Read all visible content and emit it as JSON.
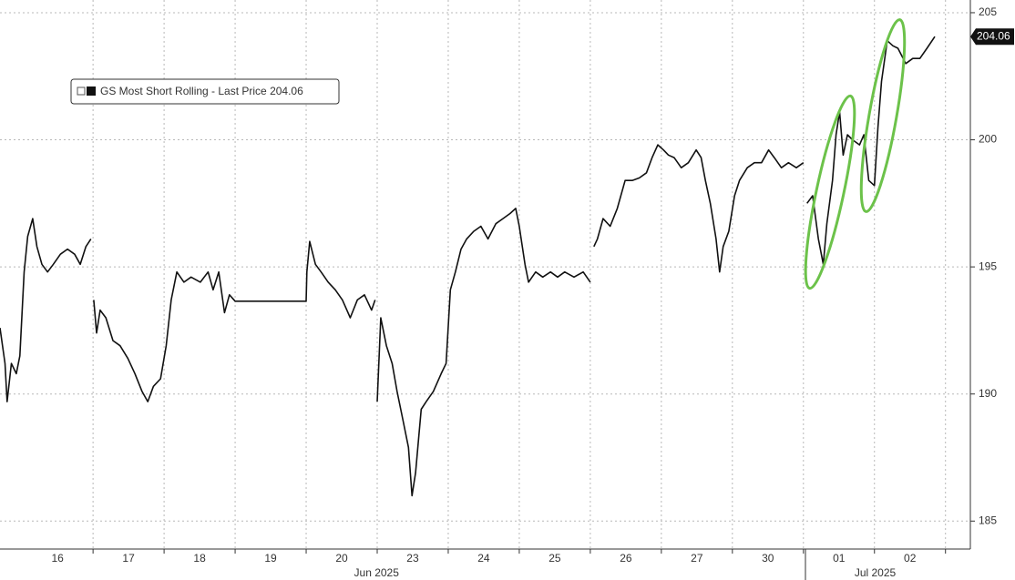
{
  "chart_data": {
    "type": "line",
    "series": [
      {
        "name": "GS Most Short Rolling - Last Price 204.06",
        "color": "#111111",
        "x": [
          -0.31,
          -0.24,
          -0.21,
          -0.15,
          -0.08,
          -0.03,
          0.03,
          0.08,
          0.15,
          0.21,
          0.28,
          0.36,
          0.44,
          0.54,
          0.64,
          0.74,
          0.82,
          0.9,
          0.97,
          null,
          1.01,
          1.05,
          1.1,
          1.18,
          1.28,
          1.38,
          1.49,
          1.59,
          1.69,
          1.77,
          1.85,
          1.95,
          2.03,
          2.1,
          2.18,
          2.28,
          2.38,
          2.51,
          2.62,
          2.69,
          2.77,
          2.85,
          2.92,
          3.0,
          4.0,
          4.01,
          4.05,
          4.13,
          4.21,
          4.31,
          4.41,
          4.51,
          4.62,
          4.72,
          4.82,
          4.92,
          4.97,
          null,
          5.0,
          5.05,
          5.13,
          5.21,
          5.28,
          5.36,
          5.44,
          5.49,
          5.54,
          5.62,
          5.69,
          5.79,
          5.9,
          5.97,
          6.03,
          6.1,
          6.18,
          6.26,
          6.36,
          6.46,
          6.56,
          6.67,
          6.77,
          6.87,
          6.95,
          7.0,
          7.08,
          7.13,
          7.23,
          7.33,
          7.44,
          7.54,
          7.64,
          7.77,
          7.9,
          8.0,
          null,
          8.05,
          8.1,
          8.18,
          8.28,
          8.38,
          8.49,
          8.59,
          8.69,
          8.79,
          8.87,
          8.95,
          9.03,
          9.1,
          9.18,
          9.28,
          9.38,
          9.49,
          9.56,
          9.62,
          9.69,
          9.77,
          9.82,
          9.87,
          9.95,
          10.03,
          10.1,
          10.21,
          10.31,
          10.41,
          10.51,
          10.59,
          10.69,
          10.79,
          10.9,
          11.0,
          null,
          11.05,
          11.13,
          11.21,
          11.28,
          11.33,
          11.41,
          11.46,
          11.51,
          11.56,
          11.62,
          11.69,
          11.79,
          11.85,
          11.92,
          12.0,
          12.05,
          12.1,
          12.18,
          12.26,
          12.33,
          12.44,
          12.54,
          12.64,
          12.74,
          12.85
        ],
        "values": [
          192.6,
          191.2,
          189.7,
          191.2,
          190.8,
          191.5,
          194.8,
          196.2,
          196.9,
          195.8,
          195.1,
          194.8,
          195.1,
          195.5,
          195.7,
          195.5,
          195.1,
          195.8,
          196.1,
          null,
          193.7,
          192.4,
          193.3,
          193.0,
          192.1,
          191.9,
          191.4,
          190.8,
          190.1,
          189.7,
          190.3,
          190.6,
          191.9,
          193.7,
          194.8,
          194.4,
          194.6,
          194.4,
          194.8,
          194.1,
          194.8,
          193.2,
          193.9,
          193.65,
          193.65,
          194.8,
          196.0,
          195.1,
          194.8,
          194.4,
          194.1,
          193.7,
          193.0,
          193.7,
          193.9,
          193.3,
          193.7,
          null,
          189.7,
          193.0,
          191.9,
          191.2,
          190.1,
          189.0,
          187.9,
          186.0,
          186.9,
          189.4,
          189.7,
          190.1,
          190.8,
          191.2,
          194.1,
          194.8,
          195.7,
          196.1,
          196.4,
          196.6,
          196.1,
          196.7,
          196.9,
          197.1,
          197.3,
          196.6,
          195.1,
          194.4,
          194.8,
          194.6,
          194.8,
          194.6,
          194.8,
          194.6,
          194.8,
          194.4,
          null,
          195.8,
          196.1,
          196.9,
          196.6,
          197.3,
          198.4,
          198.4,
          198.5,
          198.7,
          199.3,
          199.8,
          199.6,
          199.4,
          199.3,
          198.9,
          199.1,
          199.6,
          199.3,
          198.4,
          197.5,
          196.1,
          194.8,
          195.8,
          196.4,
          197.8,
          198.4,
          198.9,
          199.1,
          199.1,
          199.6,
          199.3,
          198.9,
          199.1,
          198.9,
          199.1,
          null,
          197.5,
          197.8,
          196.1,
          195.1,
          196.7,
          198.4,
          200.2,
          201.1,
          199.4,
          200.2,
          200.0,
          199.8,
          200.2,
          198.4,
          198.2,
          200.5,
          202.3,
          203.9,
          203.7,
          203.6,
          203.0,
          203.2,
          203.2,
          203.6,
          204.06
        ]
      }
    ],
    "last_price": 204.06,
    "xlim": [
      -0.31,
      13.35
    ],
    "xticks": [
      {
        "value": 0.5,
        "label": "16"
      },
      {
        "value": 1.5,
        "label": "17"
      },
      {
        "value": 2.5,
        "label": "18"
      },
      {
        "value": 3.5,
        "label": "19"
      },
      {
        "value": 4.5,
        "label": "20"
      },
      {
        "value": 5.5,
        "label": "23"
      },
      {
        "value": 6.5,
        "label": "24"
      },
      {
        "value": 7.5,
        "label": "25"
      },
      {
        "value": 8.5,
        "label": "26"
      },
      {
        "value": 9.5,
        "label": "27"
      },
      {
        "value": 10.5,
        "label": "30"
      },
      {
        "value": 11.5,
        "label": "01"
      },
      {
        "value": 12.5,
        "label": "02"
      }
    ],
    "x_groups": [
      {
        "value": 4.99,
        "label": "Jun 2025"
      },
      {
        "value": 12.01,
        "label": "Jul 2025"
      }
    ],
    "ylim": [
      183.9,
      205.5
    ],
    "yticks": [
      185,
      190,
      195,
      200,
      205
    ],
    "grid": true
  }
}
